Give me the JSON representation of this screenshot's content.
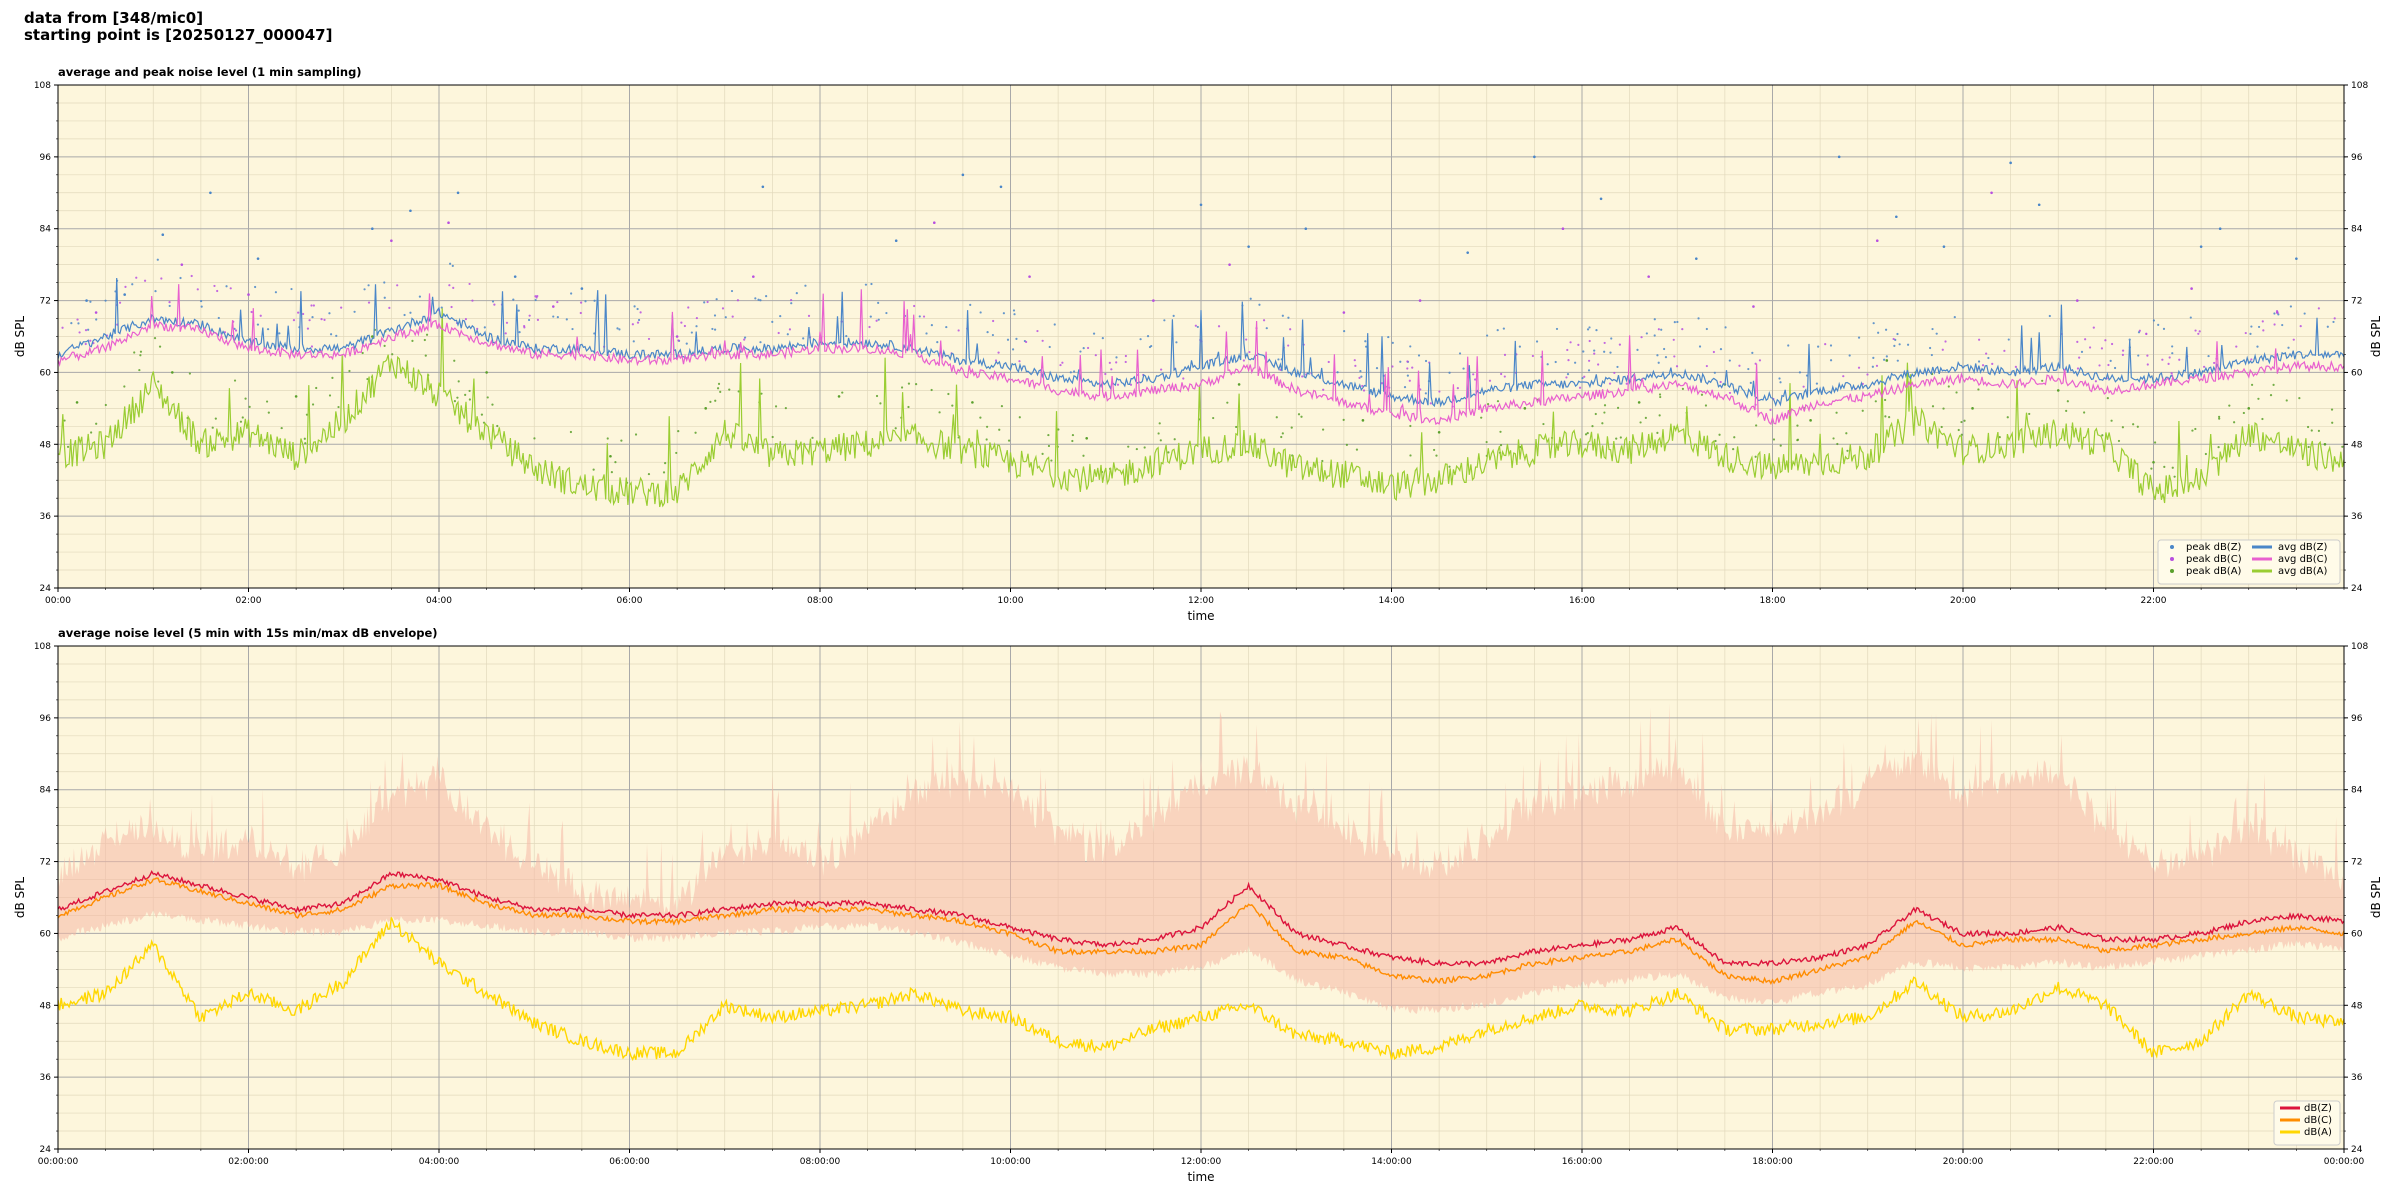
{
  "header": {
    "line1": "data from [348/mic0]",
    "line2": "starting point is [20250127_000047]"
  },
  "colors": {
    "plot_bg": "#fdf6dc",
    "grid_major": "#a9a9a9",
    "grid_minor": "#e2d9bc",
    "z": "#4a86c8",
    "c": "#e860cf",
    "a": "#9acd32",
    "z_bottom": "#dc143c",
    "c_bottom": "#ff8c00",
    "a_bottom": "#ffd700",
    "envelope": "#f6b8a6"
  },
  "chart_data": [
    {
      "type": "line",
      "title": "average and peak noise level (1 min sampling)",
      "xlabel": "time",
      "ylabel": "dB SPL",
      "ylim": [
        24,
        108
      ],
      "xlim_hours": [
        0,
        24
      ],
      "yticks": [
        "24",
        "36",
        "48",
        "60",
        "72",
        "84",
        "96",
        "108"
      ],
      "xticks": [
        "00:00",
        "02:00",
        "04:00",
        "06:00",
        "08:00",
        "10:00",
        "12:00",
        "14:00",
        "16:00",
        "18:00",
        "20:00",
        "22:00"
      ],
      "grid": true,
      "legend_position": "bottom-right",
      "legend": [
        "peak dB(Z)",
        "peak dB(C)",
        "peak dB(A)",
        "avg dB(Z)",
        "avg dB(C)",
        "avg dB(A)"
      ],
      "x_hours": [
        0,
        0.5,
        1,
        1.5,
        2,
        2.5,
        3,
        3.5,
        4,
        4.5,
        5,
        5.5,
        6,
        6.5,
        7,
        7.5,
        8,
        8.5,
        9,
        9.5,
        10,
        10.5,
        11,
        11.5,
        12,
        12.5,
        13,
        13.5,
        14,
        14.5,
        15,
        15.5,
        16,
        16.5,
        17,
        17.5,
        18,
        18.5,
        19,
        19.5,
        20,
        20.5,
        21,
        21.5,
        22,
        22.5,
        23,
        23.5,
        24
      ],
      "series": [
        {
          "name": "avg dB(Z)",
          "values": [
            63,
            66,
            69,
            68,
            65,
            64,
            64,
            67,
            70,
            66,
            64,
            64,
            63,
            63,
            64,
            64,
            65,
            65,
            64,
            62,
            61,
            59,
            58,
            59,
            61,
            63,
            60,
            58,
            56,
            55,
            57,
            58,
            58,
            59,
            60,
            58,
            55,
            57,
            58,
            60,
            61,
            60,
            61,
            59,
            59,
            60,
            62,
            63,
            63
          ]
        },
        {
          "name": "avg dB(C)",
          "values": [
            62,
            64,
            68,
            67,
            64,
            63,
            63,
            66,
            68,
            65,
            63,
            63,
            62,
            62,
            63,
            63,
            64,
            64,
            63,
            60,
            59,
            57,
            56,
            57,
            58,
            61,
            57,
            55,
            53,
            52,
            54,
            55,
            56,
            57,
            58,
            56,
            52,
            55,
            56,
            58,
            59,
            58,
            59,
            57,
            58,
            59,
            60,
            61,
            61
          ]
        },
        {
          "name": "avg dB(A)",
          "values": [
            46,
            48,
            58,
            48,
            50,
            46,
            52,
            62,
            56,
            50,
            44,
            41,
            40,
            40,
            50,
            46,
            47,
            48,
            49,
            47,
            45,
            43,
            42,
            45,
            47,
            48,
            44,
            43,
            41,
            42,
            45,
            47,
            48,
            47,
            50,
            46,
            44,
            45,
            46,
            52,
            47,
            48,
            50,
            48,
            40,
            42,
            50,
            47,
            45
          ]
        }
      ],
      "peaks": {
        "peak dB(Z)": [
          [
            0.3,
            72
          ],
          [
            0.7,
            73
          ],
          [
            1.1,
            83
          ],
          [
            1.6,
            90
          ],
          [
            2.1,
            79
          ],
          [
            3.3,
            84
          ],
          [
            3.7,
            87
          ],
          [
            4.2,
            90
          ],
          [
            4.8,
            76
          ],
          [
            5.5,
            74
          ],
          [
            7.4,
            91
          ],
          [
            8.8,
            82
          ],
          [
            9.5,
            93
          ],
          [
            9.9,
            91
          ],
          [
            12.0,
            88
          ],
          [
            12.5,
            81
          ],
          [
            13.1,
            84
          ],
          [
            14.8,
            80
          ],
          [
            15.5,
            96
          ],
          [
            16.2,
            89
          ],
          [
            17.2,
            79
          ],
          [
            18.7,
            96
          ],
          [
            19.3,
            86
          ],
          [
            19.8,
            81
          ],
          [
            20.5,
            95
          ],
          [
            20.8,
            88
          ],
          [
            22.5,
            81
          ],
          [
            22.7,
            84
          ],
          [
            23.5,
            79
          ]
        ],
        "peak dB(C)": [
          [
            0.4,
            70
          ],
          [
            1.3,
            78
          ],
          [
            2.0,
            73
          ],
          [
            3.5,
            82
          ],
          [
            4.1,
            85
          ],
          [
            5.2,
            71
          ],
          [
            6.5,
            66
          ],
          [
            7.3,
            76
          ],
          [
            9.2,
            85
          ],
          [
            10.2,
            76
          ],
          [
            11.5,
            72
          ],
          [
            12.3,
            78
          ],
          [
            13.5,
            70
          ],
          [
            14.3,
            72
          ],
          [
            15.8,
            84
          ],
          [
            16.7,
            76
          ],
          [
            17.8,
            71
          ],
          [
            19.1,
            82
          ],
          [
            20.3,
            90
          ],
          [
            21.2,
            72
          ],
          [
            22.4,
            74
          ],
          [
            23.3,
            70
          ]
        ],
        "peak dB(A)": [
          [
            0.2,
            55
          ],
          [
            1.2,
            60
          ],
          [
            2.5,
            56
          ],
          [
            3.3,
            66
          ],
          [
            4.5,
            60
          ],
          [
            5.8,
            46
          ],
          [
            6.8,
            54
          ],
          [
            8.2,
            56
          ],
          [
            9.6,
            55
          ],
          [
            10.8,
            49
          ],
          [
            12.4,
            58
          ],
          [
            13.7,
            52
          ],
          [
            14.5,
            50
          ],
          [
            15.4,
            54
          ],
          [
            16.6,
            55
          ],
          [
            17.5,
            58
          ],
          [
            18.4,
            52
          ],
          [
            19.2,
            62
          ],
          [
            20.1,
            54
          ],
          [
            21.0,
            57
          ],
          [
            22.0,
            45
          ],
          [
            23.0,
            54
          ],
          [
            23.8,
            48
          ]
        ]
      }
    },
    {
      "type": "line",
      "title": "average noise level (5 min with 15s min/max dB envelope)",
      "xlabel": "time",
      "ylabel": "dB SPL",
      "ylim": [
        24,
        108
      ],
      "xlim_hours": [
        0,
        24
      ],
      "yticks": [
        "24",
        "36",
        "48",
        "60",
        "72",
        "84",
        "96",
        "108"
      ],
      "xticks": [
        "00:00:00",
        "02:00:00",
        "04:00:00",
        "06:00:00",
        "08:00:00",
        "10:00:00",
        "12:00:00",
        "14:00:00",
        "16:00:00",
        "18:00:00",
        "20:00:00",
        "22:00:00",
        "00:00:00"
      ],
      "grid": true,
      "legend_position": "bottom-right",
      "legend": [
        "dB(Z)",
        "dB(C)",
        "dB(A)"
      ],
      "x_hours": [
        0,
        0.5,
        1,
        1.5,
        2,
        2.5,
        3,
        3.5,
        4,
        4.5,
        5,
        5.5,
        6,
        6.5,
        7,
        7.5,
        8,
        8.5,
        9,
        9.5,
        10,
        10.5,
        11,
        11.5,
        12,
        12.5,
        13,
        13.5,
        14,
        14.5,
        15,
        15.5,
        16,
        16.5,
        17,
        17.5,
        18,
        18.5,
        19,
        19.5,
        20,
        20.5,
        21,
        21.5,
        22,
        22.5,
        23,
        23.5,
        24
      ],
      "series": [
        {
          "name": "dB(Z)",
          "values": [
            64,
            67,
            70,
            68,
            66,
            64,
            65,
            70,
            69,
            66,
            64,
            64,
            63,
            63,
            64,
            65,
            65,
            65,
            64,
            63,
            61,
            59,
            58,
            59,
            61,
            68,
            60,
            58,
            56,
            55,
            55,
            57,
            58,
            59,
            61,
            55,
            55,
            56,
            58,
            64,
            60,
            60,
            61,
            59,
            59,
            60,
            62,
            63,
            62
          ]
        },
        {
          "name": "dB(C)",
          "values": [
            63,
            66,
            69,
            67,
            65,
            63,
            64,
            68,
            68,
            65,
            63,
            63,
            62,
            62,
            63,
            64,
            64,
            64,
            63,
            62,
            60,
            57,
            57,
            57,
            58,
            65,
            57,
            56,
            53,
            52,
            53,
            55,
            56,
            57,
            59,
            53,
            52,
            54,
            56,
            62,
            58,
            59,
            59,
            57,
            58,
            59,
            60,
            61,
            60
          ]
        },
        {
          "name": "dB(A)",
          "values": [
            48,
            50,
            58,
            46,
            50,
            47,
            52,
            62,
            55,
            50,
            45,
            42,
            40,
            40,
            48,
            46,
            47,
            48,
            50,
            47,
            46,
            42,
            41,
            44,
            46,
            48,
            43,
            42,
            40,
            41,
            44,
            46,
            48,
            47,
            50,
            44,
            44,
            45,
            46,
            52,
            46,
            47,
            51,
            48,
            40,
            42,
            50,
            46,
            45
          ]
        }
      ],
      "envelope": {
        "upper": [
          72,
          78,
          80,
          76,
          78,
          74,
          76,
          86,
          88,
          80,
          74,
          70,
          68,
          68,
          76,
          78,
          74,
          80,
          86,
          88,
          86,
          80,
          76,
          82,
          88,
          90,
          84,
          80,
          76,
          74,
          78,
          84,
          86,
          88,
          90,
          80,
          80,
          82,
          88,
          92,
          86,
          88,
          90,
          80,
          74,
          76,
          80,
          76,
          72
        ],
        "lower": [
          60,
          62,
          64,
          63,
          62,
          61,
          61,
          63,
          63,
          62,
          61,
          61,
          60,
          60,
          61,
          61,
          62,
          62,
          61,
          59,
          57,
          55,
          54,
          54,
          55,
          58,
          53,
          51,
          48,
          48,
          49,
          51,
          52,
          53,
          54,
          50,
          49,
          51,
          52,
          56,
          55,
          55,
          56,
          55,
          56,
          57,
          58,
          59,
          58
        ]
      }
    }
  ]
}
